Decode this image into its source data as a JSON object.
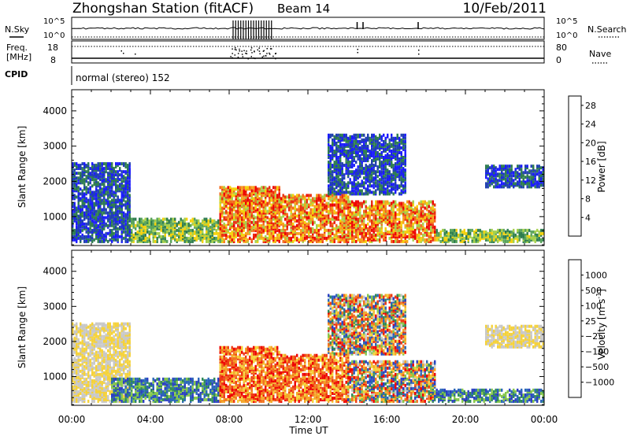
{
  "header": {
    "station": "Zhongshan Station (fitACF)",
    "beam": "Beam 14",
    "date": "10/Feb/2011"
  },
  "strips": {
    "nsky_label": "N.Sky",
    "nsky_ticks": [
      "10^5",
      "10^0"
    ],
    "nsearch_label": "N.Search",
    "nsearch_ticks": [
      "10^5",
      "10^0"
    ],
    "freq_label_1": "Freq.",
    "freq_label_2": "[MHz]",
    "freq_ticks": [
      "18",
      "8"
    ],
    "nave_label": "Nave",
    "nave_ticks": [
      "80",
      "0"
    ],
    "cpid_label": "CPID",
    "cpid_value": "normal (stereo) 152"
  },
  "colors": {
    "power": [
      "#1a1aff",
      "#2040b0",
      "#2e7d4f",
      "#58a35a",
      "#a5d04a",
      "#f5d10a",
      "#f7a21a",
      "#f36a1a",
      "#e83010",
      "#ee0000"
    ],
    "velocity": [
      "#2a3fc2",
      "#2a66b8",
      "#2f8a59",
      "#86c84a",
      "#c8c8c8",
      "#f5d23a",
      "#f4a526",
      "#f2721e",
      "#ee3a12",
      "#ee0000"
    ]
  },
  "chart_data": [
    {
      "type": "heatmap",
      "panel": "power",
      "xlabel": "Time UT",
      "ylabel": "Slant Range [km]",
      "x_ticks": [
        "00:00",
        "04:00",
        "08:00",
        "12:00",
        "16:00",
        "20:00",
        "00:00"
      ],
      "xlim_hours": [
        0,
        24
      ],
      "y_ticks": [
        1000,
        2000,
        3000,
        4000
      ],
      "ylim_km": [
        180,
        4600
      ],
      "colorbar_label": "Power [dB]",
      "colorbar_ticks": [
        "4",
        "8",
        "12",
        "16",
        "20",
        "24",
        "28"
      ],
      "colorbar_range": [
        0,
        30
      ],
      "regions": [
        {
          "t": [
            0,
            3
          ],
          "r": [
            250,
            2500
          ],
          "level": "low"
        },
        {
          "t": [
            3,
            7.5
          ],
          "r": [
            250,
            900
          ],
          "level": "mid"
        },
        {
          "t": [
            7.5,
            10.5
          ],
          "r": [
            250,
            1800
          ],
          "level": "high"
        },
        {
          "t": [
            10.5,
            14
          ],
          "r": [
            250,
            1600
          ],
          "level": "high"
        },
        {
          "t": [
            13,
            17
          ],
          "r": [
            1600,
            3300
          ],
          "level": "low"
        },
        {
          "t": [
            14,
            18.5
          ],
          "r": [
            250,
            1400
          ],
          "level": "high"
        },
        {
          "t": [
            18.5,
            24
          ],
          "r": [
            250,
            600
          ],
          "level": "mid"
        },
        {
          "t": [
            21,
            24
          ],
          "r": [
            1800,
            2400
          ],
          "level": "low"
        }
      ]
    },
    {
      "type": "heatmap",
      "panel": "velocity",
      "xlabel": "Time UT",
      "ylabel": "Slant Range [km]",
      "x_ticks": [
        "00:00",
        "04:00",
        "08:00",
        "12:00",
        "16:00",
        "20:00",
        "00:00"
      ],
      "xlim_hours": [
        0,
        24
      ],
      "y_ticks": [
        1000,
        2000,
        3000,
        4000
      ],
      "ylim_km": [
        180,
        4600
      ],
      "colorbar_label": "Velocity [m s",
      "colorbar_label_sup": "-1",
      "colorbar_label_end": "]",
      "colorbar_ticks": [
        "1000",
        "500",
        "100",
        "25",
        "−25",
        "−100",
        "−500",
        "−1000"
      ],
      "regions": [
        {
          "t": [
            0,
            3
          ],
          "r": [
            250,
            2500
          ],
          "level": "gray"
        },
        {
          "t": [
            2,
            7.5
          ],
          "r": [
            250,
            900
          ],
          "level": "pos"
        },
        {
          "t": [
            7.5,
            10.5
          ],
          "r": [
            250,
            1800
          ],
          "level": "neg"
        },
        {
          "t": [
            10.5,
            14
          ],
          "r": [
            250,
            1600
          ],
          "level": "neg"
        },
        {
          "t": [
            13,
            17
          ],
          "r": [
            1600,
            3300
          ],
          "level": "mixed"
        },
        {
          "t": [
            14,
            18.5
          ],
          "r": [
            250,
            1400
          ],
          "level": "mixed"
        },
        {
          "t": [
            18.5,
            24
          ],
          "r": [
            250,
            600
          ],
          "level": "pos"
        },
        {
          "t": [
            21,
            24
          ],
          "r": [
            1800,
            2400
          ],
          "level": "gray"
        }
      ]
    }
  ]
}
